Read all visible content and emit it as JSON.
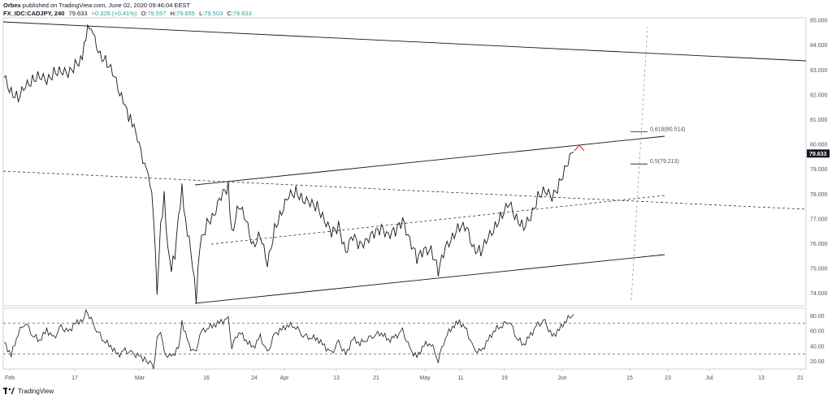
{
  "header": {
    "publisher": "Orbex",
    "published_text": "published on TradingView.com, June 02, 2020 09:46:04 EEST",
    "symbol": "FX_IDC:CADJPY, 240",
    "last": "79.633",
    "change": "+0.328 (+0.41%)",
    "o_label": "O:",
    "o": "79.557",
    "h_label": "H:",
    "h": "79.655",
    "l_label": "L:",
    "l": "79.503",
    "c_label": "C:",
    "c": "79.633"
  },
  "footer": {
    "brand": "TradingView"
  },
  "colors": {
    "price_line": "#131722",
    "last_tag": "#131722",
    "arrow": "#e53935",
    "rsi": "#131722"
  },
  "chart_data": [
    {
      "type": "line",
      "title": "",
      "ylim": [
        73.5,
        85.1
      ],
      "y_ticks": [
        "85.000",
        "84.000",
        "83.000",
        "82.000",
        "81.000",
        "80.000",
        "79.000",
        "78.000",
        "77.000",
        "76.000",
        "75.000",
        "74.000"
      ],
      "x_ticks": [
        "Feb",
        "17",
        "Mar",
        "16",
        "24",
        "Apr",
        "13",
        "21",
        "May",
        "11",
        "19",
        "Jun",
        "15",
        "23",
        "Jul",
        "13",
        "21"
      ],
      "last_price_label": "79.633",
      "fib_levels": [
        {
          "label": "0.618(80.514)",
          "value": 80.514
        },
        {
          "label": "0.5(79.213)",
          "value": 79.213
        }
      ],
      "series": [
        {
          "values": [
            [
              0,
              82.7
            ],
            [
              2,
              82.1
            ],
            [
              4,
              81.9
            ],
            [
              6,
              82.3
            ],
            [
              8,
              82.6
            ],
            [
              10,
              82.8
            ],
            [
              12,
              82.5
            ],
            [
              14,
              82.9
            ],
            [
              16,
              83.0
            ],
            [
              18,
              82.8
            ],
            [
              20,
              83.2
            ],
            [
              22,
              83.5
            ],
            [
              23,
              84.4
            ],
            [
              24,
              84.8
            ],
            [
              25,
              84.4
            ],
            [
              27,
              83.6
            ],
            [
              29,
              83.3
            ],
            [
              31,
              82.7
            ],
            [
              33,
              81.9
            ],
            [
              34,
              81.6
            ],
            [
              35,
              81.1
            ],
            [
              36,
              80.9
            ],
            [
              37,
              80.5
            ],
            [
              38,
              79.9
            ],
            [
              40,
              79.0
            ],
            [
              41,
              78.5
            ],
            [
              42,
              77.2
            ],
            [
              43,
              74.0
            ],
            [
              44,
              76.7
            ],
            [
              45,
              77.9
            ],
            [
              46,
              75.8
            ],
            [
              47,
              75.0
            ],
            [
              48,
              75.6
            ],
            [
              50,
              78.3
            ],
            [
              51,
              76.8
            ],
            [
              52,
              76.2
            ],
            [
              53,
              75.1
            ],
            [
              54,
              73.8
            ],
            [
              55,
              75.9
            ],
            [
              57,
              76.8
            ],
            [
              59,
              77.2
            ],
            [
              61,
              77.9
            ],
            [
              63,
              78.3
            ],
            [
              64,
              76.4
            ],
            [
              66,
              77.6
            ],
            [
              68,
              76.9
            ],
            [
              70,
              75.9
            ],
            [
              72,
              76.4
            ],
            [
              74,
              75.1
            ],
            [
              76,
              76.6
            ],
            [
              78,
              77.3
            ],
            [
              80,
              77.9
            ],
            [
              82,
              78.1
            ],
            [
              84,
              77.8
            ],
            [
              86,
              77.6
            ],
            [
              88,
              77.5
            ],
            [
              90,
              77.0
            ],
            [
              92,
              76.4
            ],
            [
              94,
              76.7
            ],
            [
              96,
              75.7
            ],
            [
              98,
              76.3
            ],
            [
              100,
              75.9
            ],
            [
              102,
              76.2
            ],
            [
              104,
              76.4
            ],
            [
              106,
              76.6
            ],
            [
              108,
              76.4
            ],
            [
              110,
              76.5
            ],
            [
              112,
              76.9
            ],
            [
              114,
              76.2
            ],
            [
              116,
              75.4
            ],
            [
              118,
              75.7
            ],
            [
              120,
              75.8
            ],
            [
              122,
              74.9
            ],
            [
              124,
              75.8
            ],
            [
              126,
              76.3
            ],
            [
              128,
              76.7
            ],
            [
              130,
              76.6
            ],
            [
              132,
              75.8
            ],
            [
              134,
              75.7
            ],
            [
              136,
              76.2
            ],
            [
              138,
              76.7
            ],
            [
              140,
              77.2
            ],
            [
              142,
              77.6
            ],
            [
              144,
              77.0
            ],
            [
              146,
              76.7
            ],
            [
              148,
              77.0
            ],
            [
              150,
              77.9
            ],
            [
              152,
              78.2
            ],
            [
              154,
              77.8
            ],
            [
              156,
              78.4
            ],
            [
              158,
              79.2
            ],
            [
              160,
              79.7
            ]
          ]
        }
      ]
    },
    {
      "type": "line",
      "title": "",
      "ylim": [
        10,
        90
      ],
      "y_ticks": [
        "80.00",
        "60.00",
        "40.00",
        "20.00"
      ],
      "reference_lines": [
        70,
        30
      ],
      "series": [
        {
          "values": [
            [
              0,
              45
            ],
            [
              2,
              28
            ],
            [
              4,
              58
            ],
            [
              6,
              72
            ],
            [
              8,
              55
            ],
            [
              10,
              48
            ],
            [
              12,
              61
            ],
            [
              14,
              50
            ],
            [
              16,
              65
            ],
            [
              18,
              58
            ],
            [
              20,
              70
            ],
            [
              22,
              75
            ],
            [
              23,
              84
            ],
            [
              24,
              80
            ],
            [
              26,
              62
            ],
            [
              28,
              48
            ],
            [
              30,
              40
            ],
            [
              32,
              28
            ],
            [
              34,
              34
            ],
            [
              36,
              30
            ],
            [
              38,
              26
            ],
            [
              40,
              22
            ],
            [
              41,
              18
            ],
            [
              42,
              12
            ],
            [
              43,
              48
            ],
            [
              44,
              62
            ],
            [
              45,
              30
            ],
            [
              47,
              25
            ],
            [
              49,
              38
            ],
            [
              50,
              72
            ],
            [
              52,
              40
            ],
            [
              54,
              30
            ],
            [
              55,
              58
            ],
            [
              57,
              64
            ],
            [
              59,
              68
            ],
            [
              61,
              72
            ],
            [
              63,
              75
            ],
            [
              64,
              40
            ],
            [
              66,
              60
            ],
            [
              68,
              48
            ],
            [
              70,
              38
            ],
            [
              72,
              52
            ],
            [
              74,
              30
            ],
            [
              76,
              55
            ],
            [
              78,
              62
            ],
            [
              80,
              68
            ],
            [
              82,
              66
            ],
            [
              84,
              55
            ],
            [
              86,
              52
            ],
            [
              88,
              50
            ],
            [
              90,
              40
            ],
            [
              92,
              30
            ],
            [
              94,
              45
            ],
            [
              96,
              28
            ],
            [
              98,
              50
            ],
            [
              100,
              44
            ],
            [
              102,
              50
            ],
            [
              104,
              55
            ],
            [
              106,
              58
            ],
            [
              108,
              48
            ],
            [
              110,
              52
            ],
            [
              112,
              60
            ],
            [
              114,
              36
            ],
            [
              116,
              25
            ],
            [
              118,
              42
            ],
            [
              120,
              44
            ],
            [
              122,
              22
            ],
            [
              124,
              52
            ],
            [
              126,
              66
            ],
            [
              128,
              72
            ],
            [
              130,
              60
            ],
            [
              132,
              35
            ],
            [
              134,
              32
            ],
            [
              136,
              48
            ],
            [
              138,
              62
            ],
            [
              140,
              68
            ],
            [
              142,
              74
            ],
            [
              144,
              52
            ],
            [
              146,
              42
            ],
            [
              148,
              55
            ],
            [
              150,
              68
            ],
            [
              152,
              72
            ],
            [
              154,
              52
            ],
            [
              156,
              62
            ],
            [
              158,
              75
            ],
            [
              160,
              82
            ]
          ]
        }
      ]
    }
  ]
}
